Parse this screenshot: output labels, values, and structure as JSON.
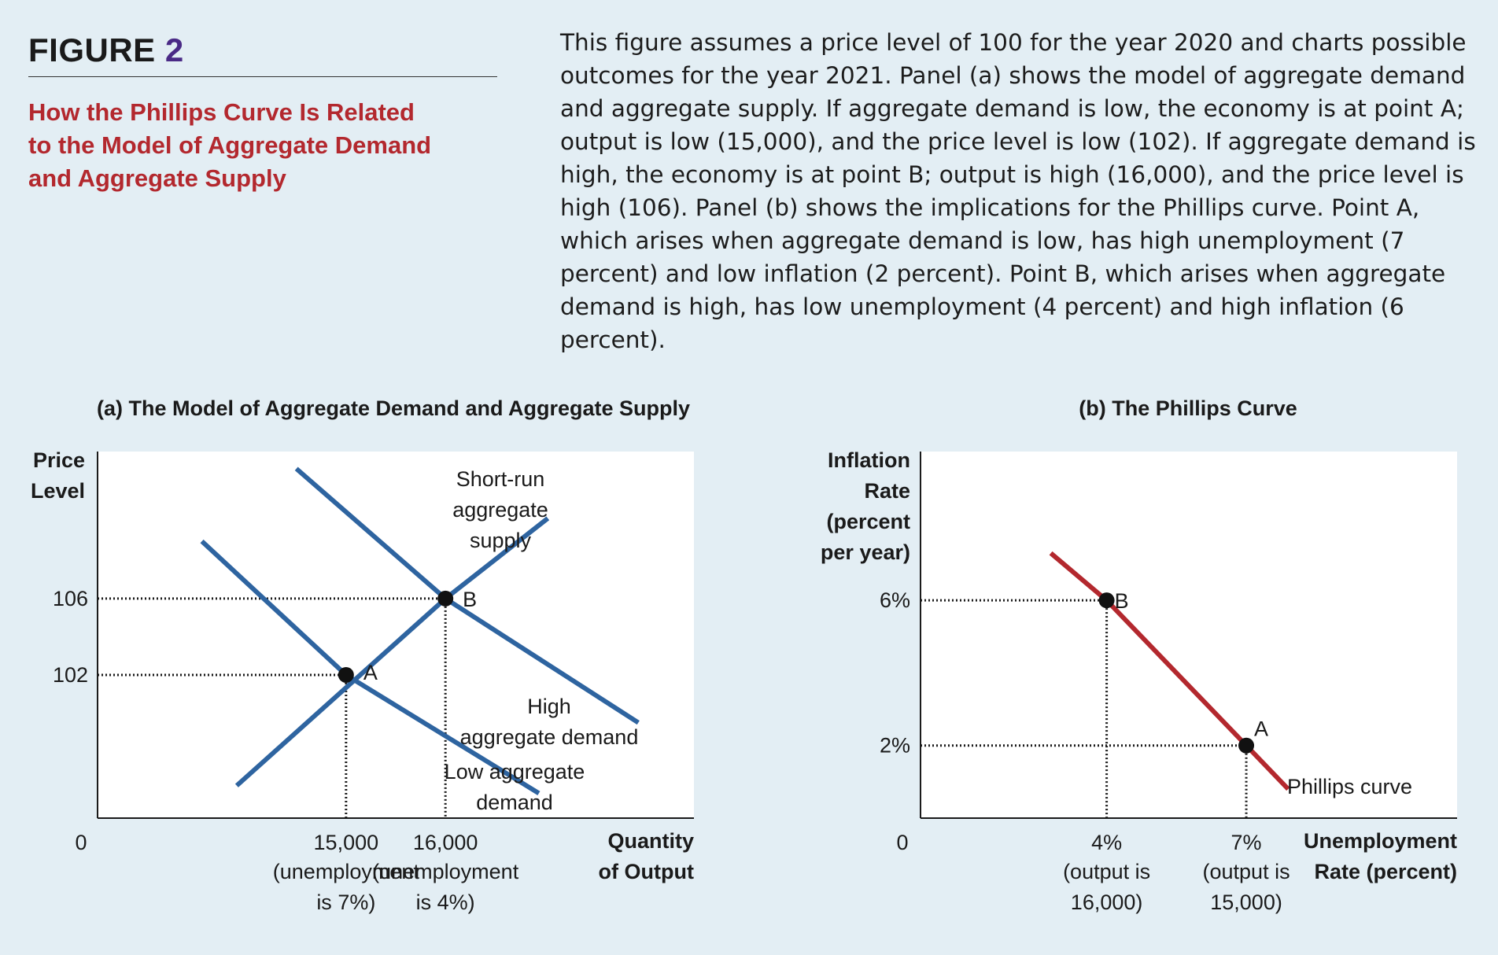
{
  "figure": {
    "label": "FIGURE",
    "number": "2",
    "title_lines": [
      "How the Phillips Curve Is Related",
      "to the Model of Aggregate Demand",
      "and Aggregate Supply"
    ],
    "caption": "This figure assumes a price level of 100 for the year 2020 and charts possible outcomes for the year 2021. Panel (a) shows the model of aggregate demand and aggregate supply. If aggregate demand is low, the economy is at point A; output is low (15,000), and the price level is low (102). If aggregate demand is high, the economy is at point B; output is high (16,000), and the price level is high (106). Panel (b) shows the implications for the Phillips curve. Point A, which arises when aggregate demand is low, has high unemployment (7 percent) and low inflation (2 percent). Point B, which arises when aggregate demand is high, has low unemployment (4 percent) and high inflation (6 percent)."
  },
  "colors": {
    "background": "#e3eef4",
    "plot_area": "#ffffff",
    "ad_as_curves": "#2e64a0",
    "phillips_curve": "#b3282e",
    "title_red": "#b3282e",
    "figure_number": "#4a2a86"
  },
  "chart_data": [
    {
      "type": "line",
      "title": "(a) The Model of Aggregate Demand and Aggregate Supply",
      "xlabel_lines": [
        "Quantity",
        "of Output"
      ],
      "ylabel_lines": [
        "Price",
        "Level"
      ],
      "origin_label": "0",
      "x_ticks": [
        {
          "value": 15000,
          "label": "15,000",
          "note_lines": [
            "(unemployment",
            "is 7%)"
          ]
        },
        {
          "value": 16000,
          "label": "16,000",
          "note_lines": [
            "(unemployment",
            "is 4%)"
          ]
        }
      ],
      "y_ticks": [
        {
          "value": 102,
          "label": "102"
        },
        {
          "value": 106,
          "label": "106"
        }
      ],
      "series": [
        {
          "id": "sras",
          "label_lines": [
            "Short-run",
            "aggregate",
            "supply"
          ],
          "points": [
            [
              13900,
              96.2
            ],
            [
              16000,
              106
            ],
            [
              17030,
              110.2
            ]
          ]
        },
        {
          "id": "high_ad",
          "label_lines": [
            "High",
            "aggregate demand"
          ],
          "points": [
            [
              14500,
              112.8
            ],
            [
              16000,
              106
            ],
            [
              17940,
              99.5
            ]
          ]
        },
        {
          "id": "low_ad",
          "label_lines": [
            "Low aggregate",
            "demand"
          ],
          "points": [
            [
              13550,
              109.0
            ],
            [
              15000,
              102
            ],
            [
              16940,
              95.8
            ]
          ]
        }
      ],
      "points": [
        {
          "label": "A",
          "x": 15000,
          "y": 102
        },
        {
          "label": "B",
          "x": 16000,
          "y": 106
        }
      ]
    },
    {
      "type": "line",
      "title": "(b) The Phillips Curve",
      "xlabel_lines": [
        "Unemployment",
        "Rate (percent)"
      ],
      "ylabel_lines": [
        "Inflation",
        "Rate",
        "(percent",
        "per year)"
      ],
      "origin_label": "0",
      "x_ticks": [
        {
          "value": 4,
          "label": "4%",
          "note_lines": [
            "(output is",
            "16,000)"
          ]
        },
        {
          "value": 7,
          "label": "7%",
          "note_lines": [
            "(output is",
            "15,000)"
          ]
        }
      ],
      "y_ticks": [
        {
          "value": 2,
          "label": "2%"
        },
        {
          "value": 6,
          "label": "6%"
        }
      ],
      "series": [
        {
          "id": "phillips",
          "label_lines": [
            "Phillips curve"
          ],
          "points": [
            [
              2.8,
              7.3
            ],
            [
              4,
              6
            ],
            [
              7,
              2
            ],
            [
              7.9,
              0.8
            ]
          ]
        }
      ],
      "points": [
        {
          "label": "B",
          "x": 4,
          "y": 6
        },
        {
          "label": "A",
          "x": 7,
          "y": 2
        }
      ]
    }
  ]
}
